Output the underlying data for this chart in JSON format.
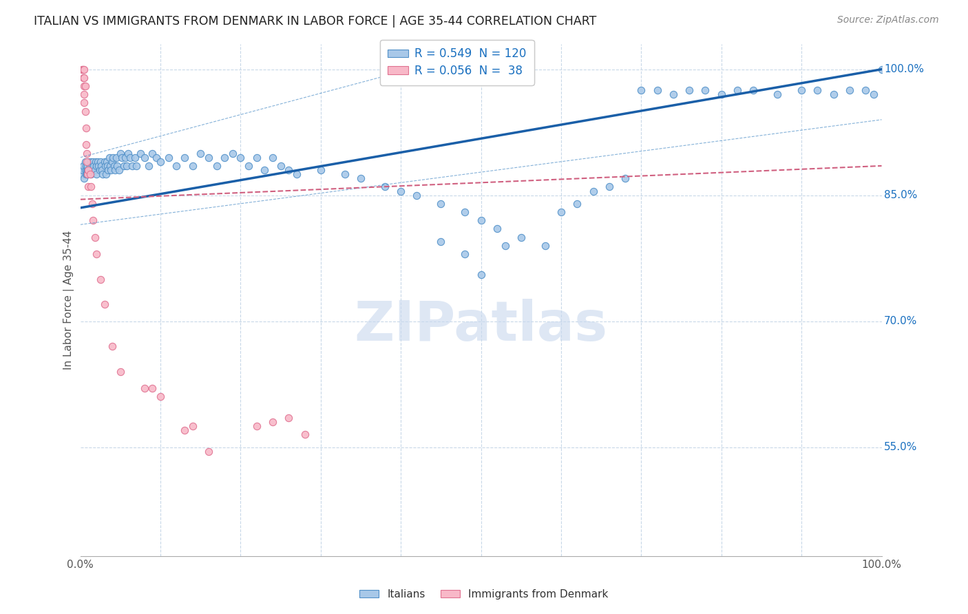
{
  "title": "ITALIAN VS IMMIGRANTS FROM DENMARK IN LABOR FORCE | AGE 35-44 CORRELATION CHART",
  "source": "Source: ZipAtlas.com",
  "ylabel": "In Labor Force | Age 35-44",
  "xlim": [
    0.0,
    1.0
  ],
  "ylim": [
    0.42,
    1.03
  ],
  "yticks": [
    0.55,
    0.7,
    0.85,
    1.0
  ],
  "ytick_labels": [
    "55.0%",
    "70.0%",
    "85.0%",
    "100.0%"
  ],
  "blue_R": 0.549,
  "blue_N": 120,
  "pink_R": 0.056,
  "pink_N": 38,
  "blue_fill": "#a8c8e8",
  "blue_edge": "#5090c8",
  "blue_line": "#1a5fa8",
  "pink_fill": "#f8b8c8",
  "pink_edge": "#e07090",
  "pink_line": "#d06080",
  "grid_color": "#c8d8e8",
  "watermark_color": "#c8d8ee",
  "blue_x": [
    0.002,
    0.003,
    0.004,
    0.005,
    0.006,
    0.006,
    0.007,
    0.007,
    0.008,
    0.008,
    0.009,
    0.009,
    0.01,
    0.01,
    0.01,
    0.012,
    0.012,
    0.013,
    0.013,
    0.015,
    0.015,
    0.016,
    0.017,
    0.018,
    0.019,
    0.02,
    0.02,
    0.022,
    0.023,
    0.024,
    0.025,
    0.026,
    0.027,
    0.028,
    0.03,
    0.031,
    0.032,
    0.033,
    0.034,
    0.035,
    0.036,
    0.037,
    0.038,
    0.04,
    0.041,
    0.042,
    0.043,
    0.045,
    0.046,
    0.048,
    0.05,
    0.052,
    0.054,
    0.056,
    0.058,
    0.06,
    0.062,
    0.065,
    0.068,
    0.07,
    0.075,
    0.08,
    0.085,
    0.09,
    0.095,
    0.1,
    0.11,
    0.12,
    0.13,
    0.14,
    0.15,
    0.16,
    0.17,
    0.18,
    0.19,
    0.2,
    0.21,
    0.22,
    0.23,
    0.24,
    0.25,
    0.26,
    0.27,
    0.3,
    0.33,
    0.35,
    0.38,
    0.4,
    0.42,
    0.45,
    0.48,
    0.5,
    0.52,
    0.55,
    0.58,
    0.6,
    0.62,
    0.64,
    0.66,
    0.68,
    0.7,
    0.72,
    0.74,
    0.76,
    0.78,
    0.8,
    0.82,
    0.84,
    0.87,
    0.9,
    0.92,
    0.94,
    0.96,
    0.98,
    0.99,
    1.0,
    0.45,
    0.48,
    0.5,
    0.53
  ],
  "blue_y": [
    0.875,
    0.88,
    0.885,
    0.87,
    0.88,
    0.89,
    0.875,
    0.885,
    0.88,
    0.875,
    0.88,
    0.885,
    0.88,
    0.875,
    0.89,
    0.885,
    0.88,
    0.89,
    0.875,
    0.885,
    0.88,
    0.89,
    0.885,
    0.88,
    0.89,
    0.885,
    0.875,
    0.89,
    0.885,
    0.88,
    0.89,
    0.885,
    0.88,
    0.875,
    0.89,
    0.885,
    0.875,
    0.89,
    0.885,
    0.88,
    0.895,
    0.885,
    0.88,
    0.89,
    0.895,
    0.885,
    0.88,
    0.895,
    0.885,
    0.88,
    0.9,
    0.895,
    0.885,
    0.895,
    0.885,
    0.9,
    0.895,
    0.885,
    0.895,
    0.885,
    0.9,
    0.895,
    0.885,
    0.9,
    0.895,
    0.89,
    0.895,
    0.885,
    0.895,
    0.885,
    0.9,
    0.895,
    0.885,
    0.895,
    0.9,
    0.895,
    0.885,
    0.895,
    0.88,
    0.895,
    0.885,
    0.88,
    0.875,
    0.88,
    0.875,
    0.87,
    0.86,
    0.855,
    0.85,
    0.84,
    0.83,
    0.82,
    0.81,
    0.8,
    0.79,
    0.83,
    0.84,
    0.855,
    0.86,
    0.87,
    0.975,
    0.975,
    0.97,
    0.975,
    0.975,
    0.97,
    0.975,
    0.975,
    0.97,
    0.975,
    0.975,
    0.97,
    0.975,
    0.975,
    0.97,
    1.0,
    0.795,
    0.78,
    0.755,
    0.79
  ],
  "pink_x": [
    0.002,
    0.003,
    0.004,
    0.004,
    0.005,
    0.005,
    0.005,
    0.005,
    0.005,
    0.006,
    0.006,
    0.007,
    0.007,
    0.008,
    0.008,
    0.009,
    0.01,
    0.01,
    0.012,
    0.013,
    0.015,
    0.016,
    0.018,
    0.02,
    0.025,
    0.03,
    0.04,
    0.05,
    0.08,
    0.09,
    0.1,
    0.13,
    0.14,
    0.16,
    0.22,
    0.24,
    0.26,
    0.28
  ],
  "pink_y": [
    1.0,
    1.0,
    1.0,
    0.99,
    1.0,
    0.99,
    0.98,
    0.97,
    0.96,
    0.98,
    0.95,
    0.93,
    0.91,
    0.9,
    0.89,
    0.875,
    0.88,
    0.86,
    0.875,
    0.86,
    0.84,
    0.82,
    0.8,
    0.78,
    0.75,
    0.72,
    0.67,
    0.64,
    0.62,
    0.62,
    0.61,
    0.57,
    0.575,
    0.545,
    0.575,
    0.58,
    0.585,
    0.565
  ]
}
